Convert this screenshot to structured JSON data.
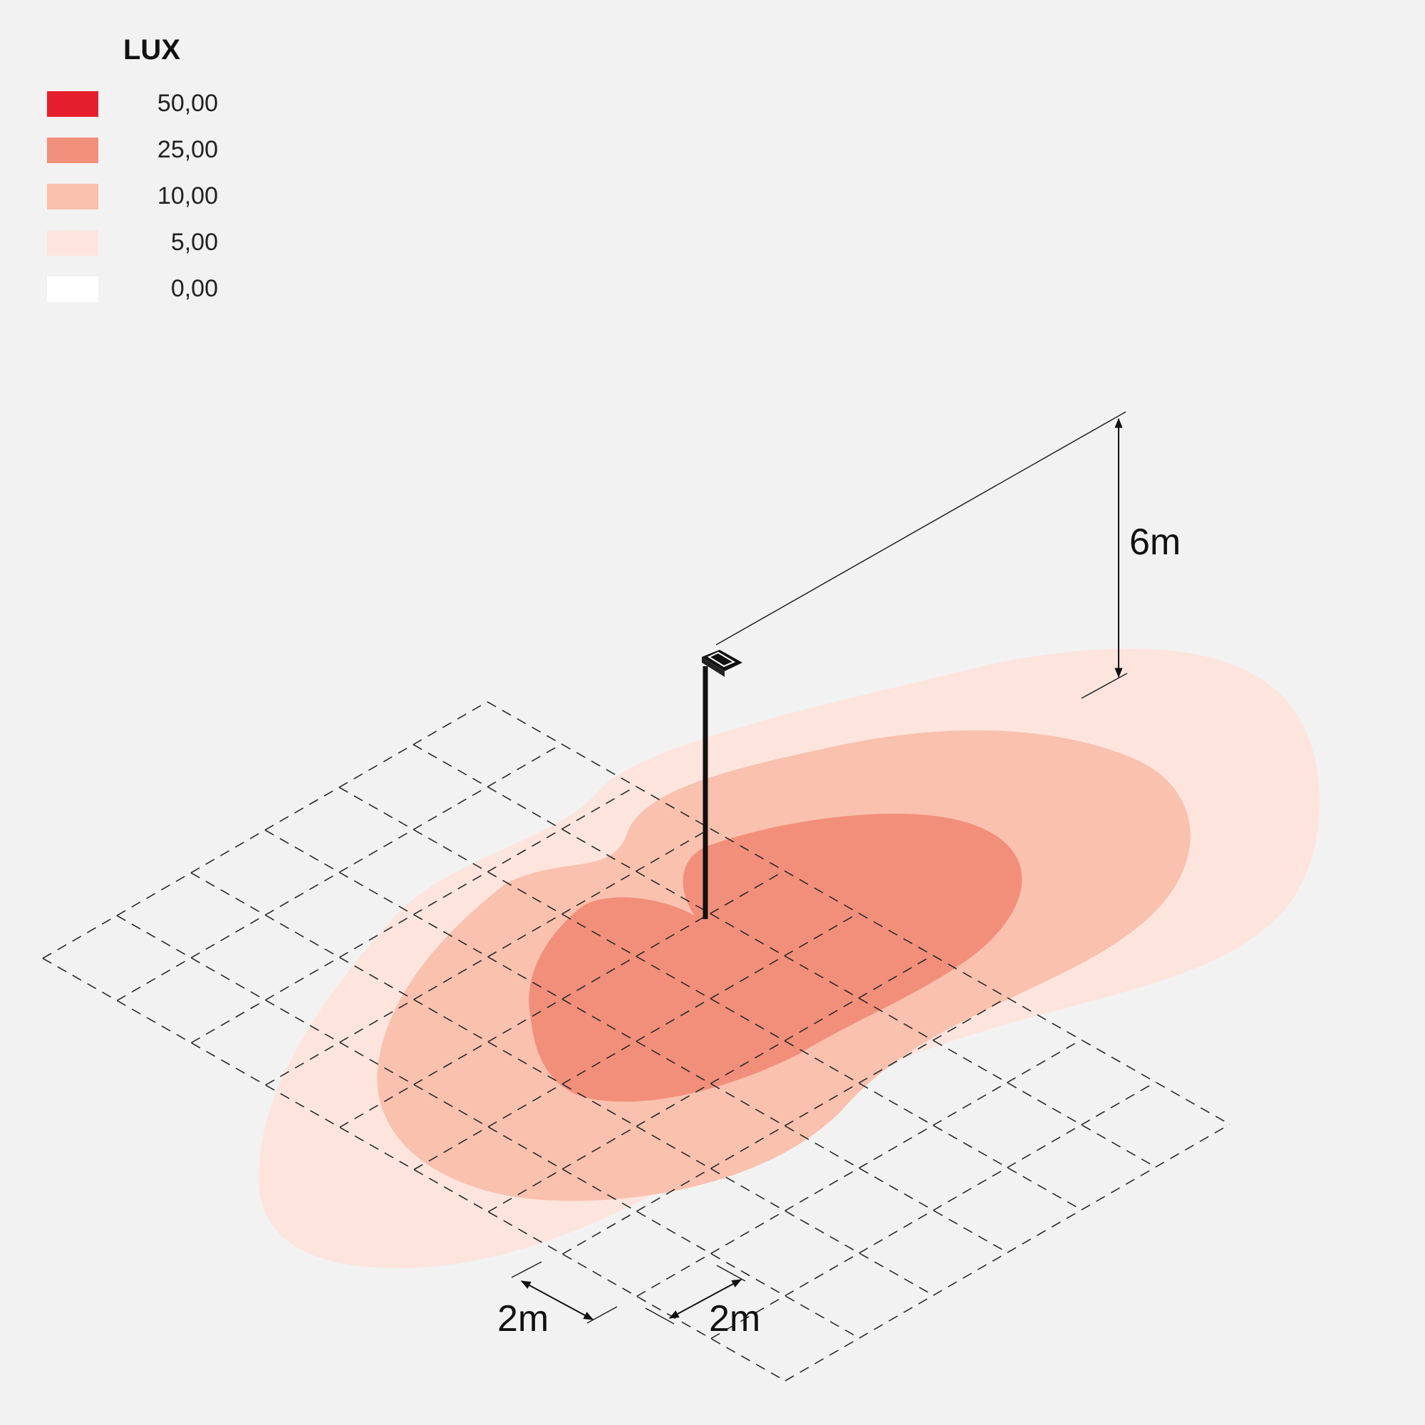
{
  "legend": {
    "title": "LUX",
    "items": [
      {
        "label": "50,00",
        "color": "#e51e2e"
      },
      {
        "label": "25,00",
        "color": "#f28f7a"
      },
      {
        "label": "10,00",
        "color": "#f9c1ae"
      },
      {
        "label": "5,00",
        "color": "#fde5dd"
      },
      {
        "label": "0,00",
        "color": "#ffffff"
      }
    ]
  },
  "dimensions": {
    "height": "6m",
    "grid_x": "2m",
    "grid_y": "2m"
  },
  "contours": {
    "level_5_color": "#fde5dd",
    "level_10_color": "#f9c1ae",
    "level_25_color": "#f28f7a"
  },
  "grid": {
    "rows": 6,
    "cols": 10
  }
}
